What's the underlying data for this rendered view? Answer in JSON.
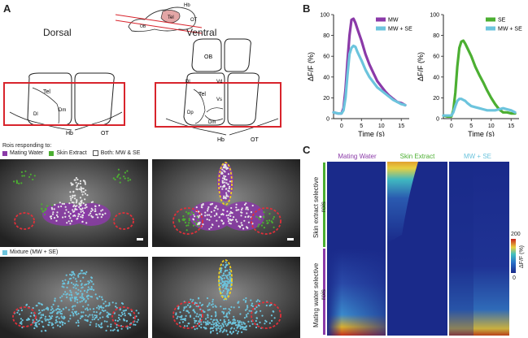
{
  "panels": {
    "a": "A",
    "b": "B",
    "c": "C"
  },
  "colors": {
    "mating_water": "#8b3aa8",
    "skin_extract": "#4caf32",
    "mixture": "#6cc4dd",
    "box_red": "#d8242c",
    "roi_dash_red": "#e0303a",
    "roi_dash_yellow": "#f0d020"
  },
  "panel_a": {
    "brain_side": {
      "hb": "Hb",
      "tel": "Tel",
      "ob": "OB",
      "ot": "OT"
    },
    "dorsal": {
      "title": "Dorsal",
      "labels": {
        "tel": "Tel",
        "dl": "Dl",
        "dm": "Dm",
        "hb": "Hb",
        "ot": "OT"
      }
    },
    "ventral": {
      "title": "Ventral",
      "labels": {
        "ob": "OB",
        "tel": "Tel",
        "dl": "Dl",
        "vd": "Vd",
        "vs": "Vs",
        "dp": "Dp",
        "dm": "Dm",
        "hb": "Hb",
        "ot": "OT"
      }
    },
    "legend_top": {
      "intro": "Rois responding to:",
      "items": [
        {
          "label": "Mating Water",
          "color": "#8b3aa8"
        },
        {
          "label": "Skin Extract",
          "color": "#4caf32"
        },
        {
          "label": "Both: MW & SE",
          "color": "#ffffff"
        }
      ]
    },
    "legend_bottom": {
      "label": "Mixture (MW + SE)",
      "color": "#6cc4dd"
    }
  },
  "panel_b": {
    "charts": [
      {
        "type": "line",
        "xlabel": "Time (s)",
        "ylabel": "ΔF/F (%)",
        "xlim": [
          -2,
          17
        ],
        "ylim": [
          0,
          100
        ],
        "xticks": [
          0,
          5,
          10,
          15
        ],
        "yticks": [
          0,
          20,
          40,
          60,
          80,
          100
        ],
        "legend_position": "top-right",
        "series": [
          {
            "name": "MW",
            "color": "#8b3aa8",
            "x": [
              -2,
              -1,
              0,
              0.5,
              1,
              1.5,
              2,
              2.5,
              3,
              3.5,
              4,
              5,
              6,
              7,
              8,
              9,
              10,
              11,
              12,
              13,
              14,
              15,
              16
            ],
            "y": [
              6,
              5,
              5,
              10,
              28,
              55,
              80,
              95,
              96,
              92,
              86,
              75,
              62,
              52,
              44,
              36,
              31,
              26,
              22,
              19,
              16,
              15,
              13
            ]
          },
          {
            "name": "MW + SE",
            "color": "#6cc4dd",
            "x": [
              -2,
              -1,
              0,
              0.5,
              1,
              1.5,
              2,
              2.5,
              3,
              3.5,
              4,
              5,
              6,
              7,
              8,
              9,
              10,
              11,
              12,
              13,
              14,
              15,
              16
            ],
            "y": [
              6,
              5,
              5,
              8,
              20,
              42,
              62,
              68,
              70,
              69,
              64,
              56,
              47,
              40,
              35,
              30,
              27,
              24,
              21,
              18,
              16,
              14,
              13
            ]
          }
        ]
      },
      {
        "type": "line",
        "xlabel": "Time (s)",
        "ylabel": "ΔF/F (%)",
        "xlim": [
          -2,
          17
        ],
        "ylim": [
          0,
          100
        ],
        "xticks": [
          0,
          5,
          10,
          15
        ],
        "yticks": [
          0,
          20,
          40,
          60,
          80,
          100
        ],
        "legend_position": "top-right",
        "series": [
          {
            "name": "SE",
            "color": "#4caf32",
            "x": [
              -2,
              -1,
              0,
              0.5,
              1,
              1.5,
              2,
              2.5,
              3,
              3.5,
              4,
              5,
              6,
              7,
              8,
              9,
              10,
              11,
              12,
              13,
              14,
              15,
              16
            ],
            "y": [
              3,
              2,
              2,
              8,
              25,
              50,
              68,
              74,
              75,
              72,
              68,
              60,
              50,
              42,
              35,
              27,
              20,
              14,
              9,
              6,
              6,
              5,
              5
            ]
          },
          {
            "name": "MW + SE",
            "color": "#6cc4dd",
            "x": [
              -2,
              -1,
              0,
              0.5,
              1,
              1.5,
              2,
              2.5,
              3,
              3.5,
              4,
              5,
              6,
              7,
              8,
              9,
              10,
              11,
              12,
              13,
              14,
              15,
              16
            ],
            "y": [
              3,
              3,
              3,
              6,
              12,
              17,
              19,
              19,
              18,
              17,
              15,
              12,
              11,
              10,
              9,
              8,
              8,
              8,
              9,
              10,
              9,
              8,
              6
            ]
          }
        ]
      }
    ]
  },
  "panel_c": {
    "columns": [
      "Mating Water",
      "Skin Extract",
      "MW + SE"
    ],
    "column_colors": [
      "#8b3aa8",
      "#4caf32",
      "#6cc4dd"
    ],
    "row_groups": [
      {
        "label": "Skin extract selective rois",
        "color": "#4caf32"
      },
      {
        "label": "Mating water selective rois",
        "color": "#8b3aa8"
      }
    ],
    "colorbar": {
      "max": "200",
      "min": "0",
      "label": "ΔF/F (%)"
    }
  }
}
